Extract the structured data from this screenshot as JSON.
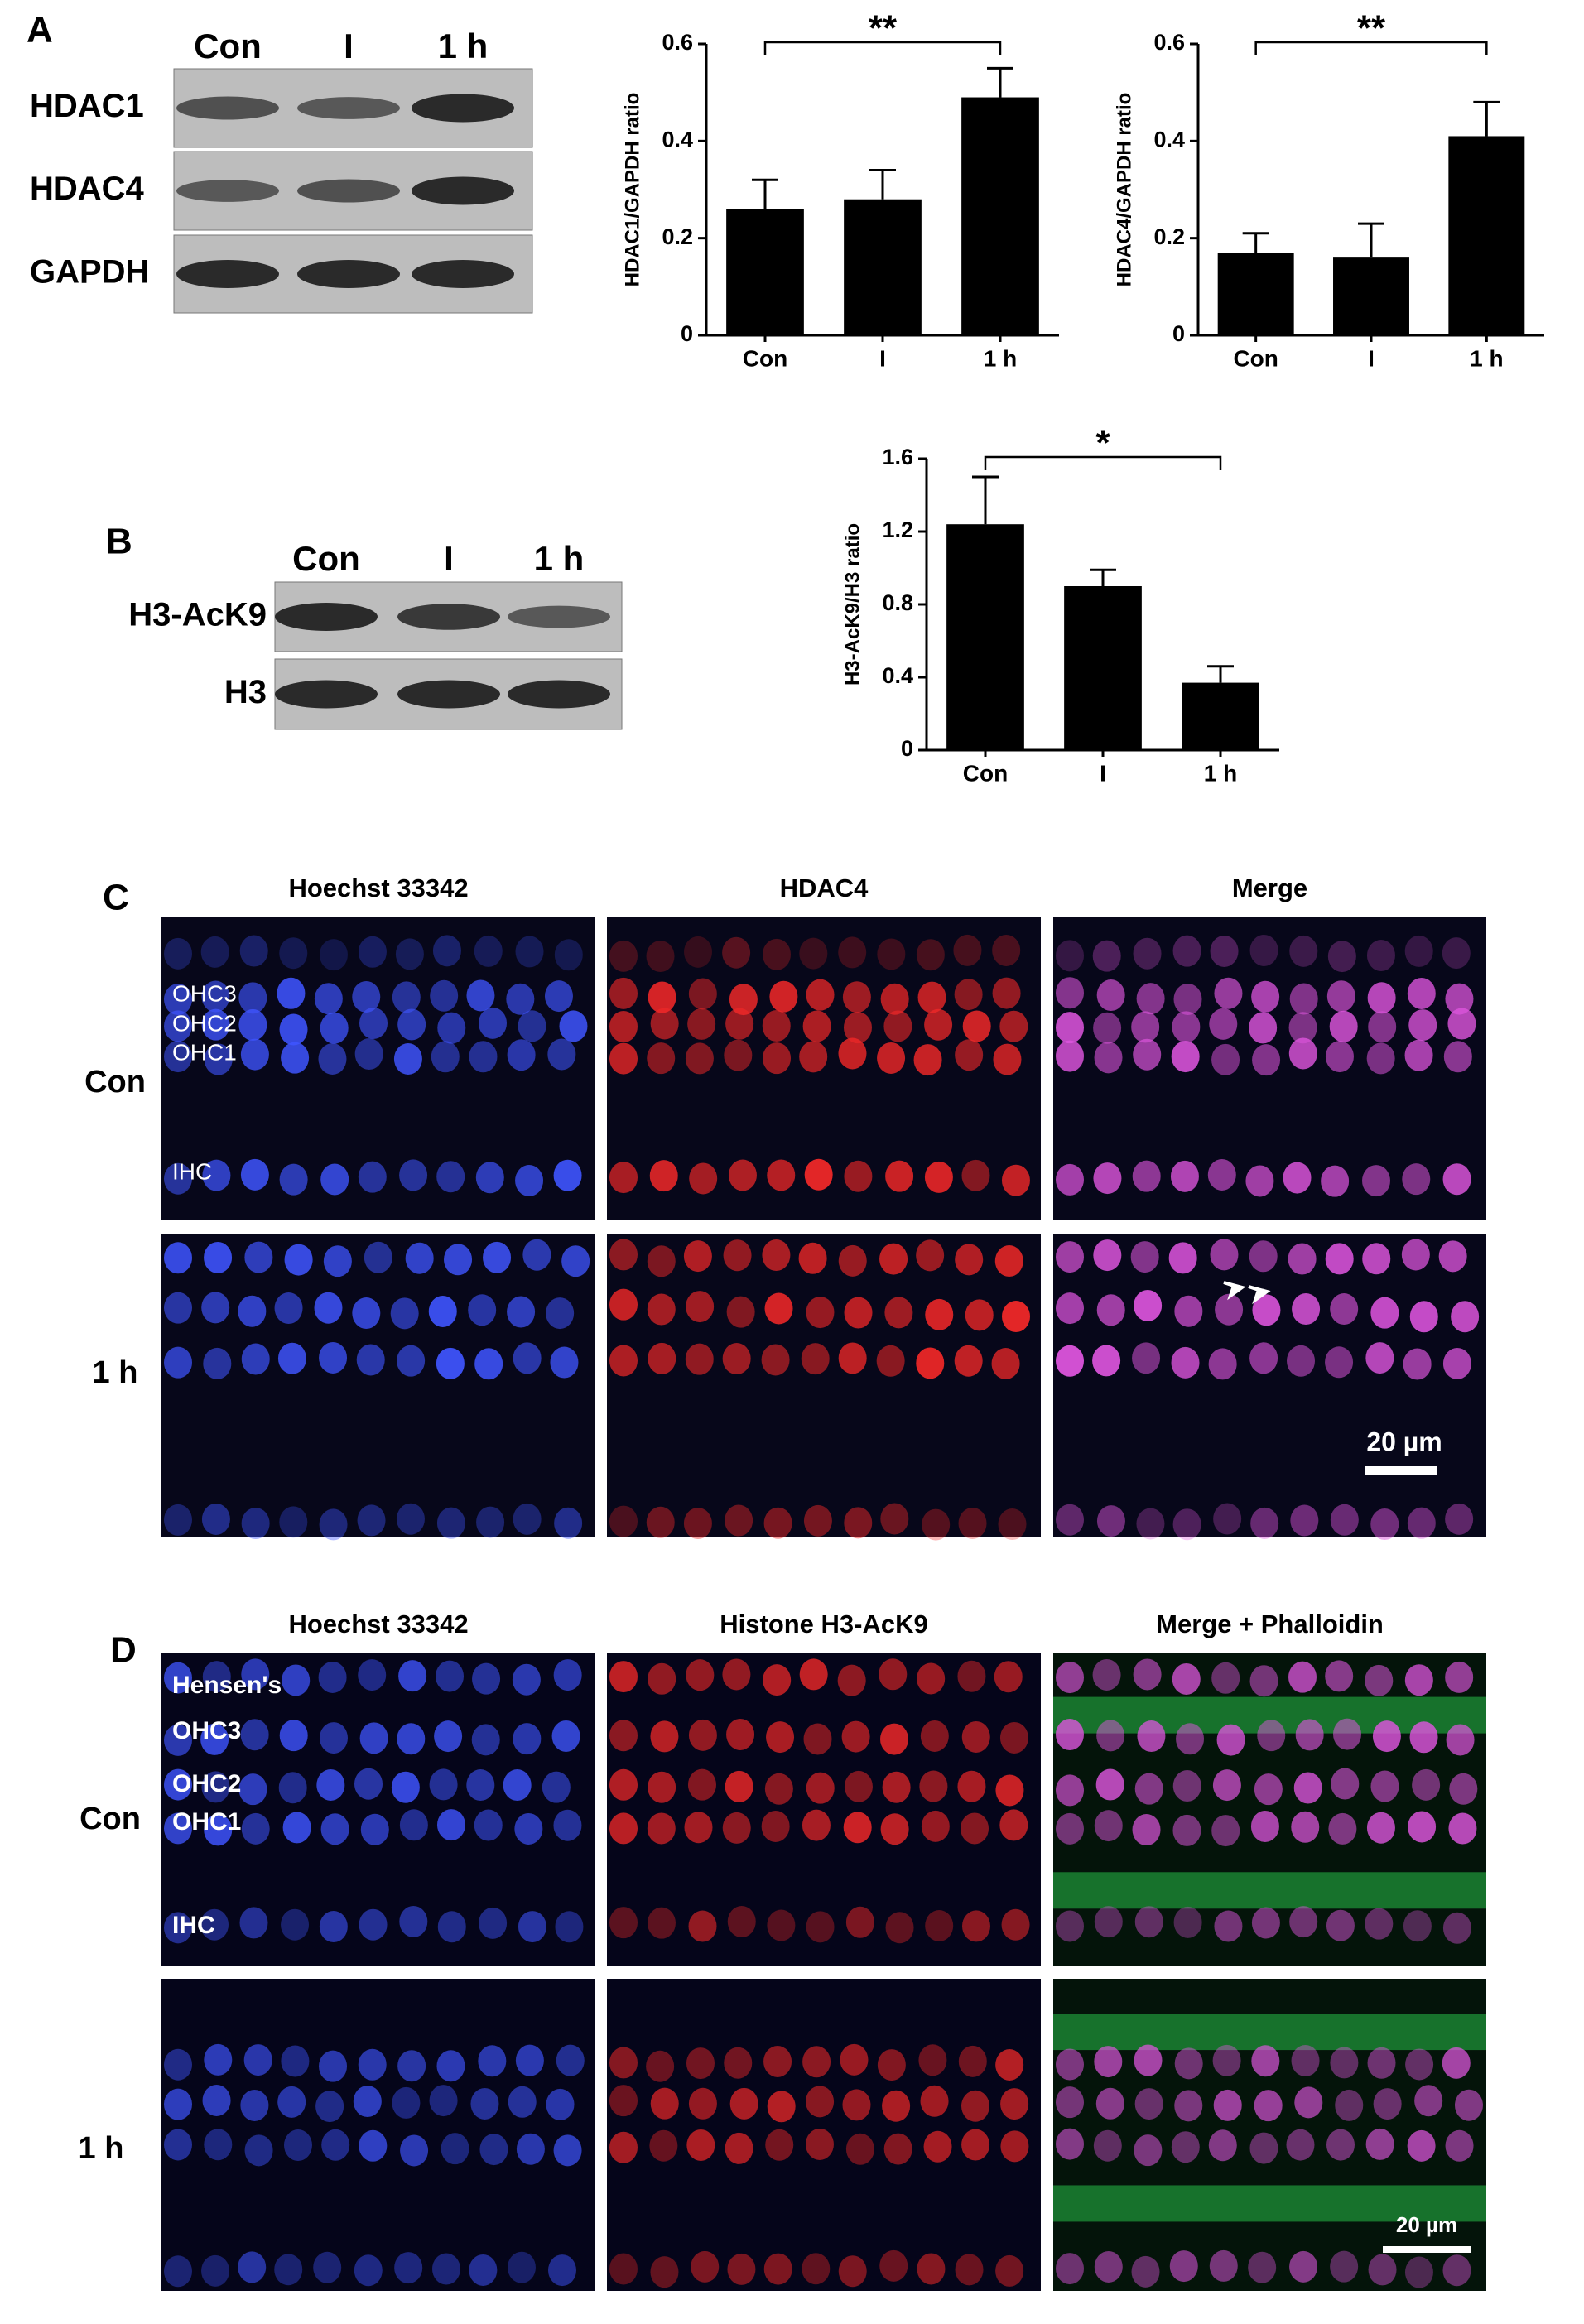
{
  "chart_data": [
    {
      "type": "bar",
      "ylabel": "HDAC1/GAPDH ratio",
      "categories": [
        "Con",
        "I",
        "1 h"
      ],
      "values": [
        0.26,
        0.28,
        0.49
      ],
      "errors": [
        0.06,
        0.06,
        0.06
      ],
      "color": "#000000",
      "ylim": [
        0,
        0.6
      ],
      "yticks": [
        0,
        0.2,
        0.4,
        0.6
      ],
      "annotation": "**"
    },
    {
      "type": "bar",
      "ylabel": "HDAC4/GAPDH ratio",
      "categories": [
        "Con",
        "I",
        "1 h"
      ],
      "values": [
        0.17,
        0.16,
        0.41
      ],
      "errors": [
        0.04,
        0.07,
        0.07
      ],
      "color": "#000000",
      "ylim": [
        0,
        0.6
      ],
      "yticks": [
        0,
        0.2,
        0.4,
        0.6
      ],
      "annotation": "**"
    },
    {
      "type": "bar",
      "ylabel": "H3-AcK9/H3 ratio",
      "categories": [
        "Con",
        "I",
        "1 h"
      ],
      "values": [
        1.24,
        0.9,
        0.37
      ],
      "errors": [
        0.26,
        0.09,
        0.09
      ],
      "color": "#000000",
      "ylim": [
        0,
        1.6
      ],
      "yticks": [
        0,
        0.4,
        0.8,
        1.2,
        1.6
      ],
      "annotation": "*"
    }
  ],
  "figure": {
    "panel_labels": [
      "A",
      "B",
      "C",
      "D"
    ],
    "blot_a": {
      "lanes": [
        "Con",
        "I",
        "1 h"
      ],
      "rows": [
        "HDAC1",
        "HDAC4",
        "GAPDH"
      ]
    },
    "blot_b": {
      "lanes": [
        "Con",
        "I",
        "1 h"
      ],
      "rows": [
        "H3-AcK9",
        "H3"
      ]
    },
    "panel_c": {
      "columns": [
        "Hoechst 33342",
        "HDAC4",
        "Merge"
      ],
      "rows": [
        "Con",
        "1 h"
      ],
      "cell_labels": [
        "OHC3",
        "OHC2",
        "OHC1",
        "IHC"
      ],
      "scale_bar": "20 µm"
    },
    "panel_d": {
      "columns": [
        "Hoechst 33342",
        "Histone H3-AcK9",
        "Merge + Phalloidin"
      ],
      "rows": [
        "Con",
        "1 h"
      ],
      "cell_labels": [
        "Hensen's",
        "OHC3",
        "OHC2",
        "OHC1",
        "IHC"
      ],
      "scale_bar": "20 µm"
    }
  }
}
